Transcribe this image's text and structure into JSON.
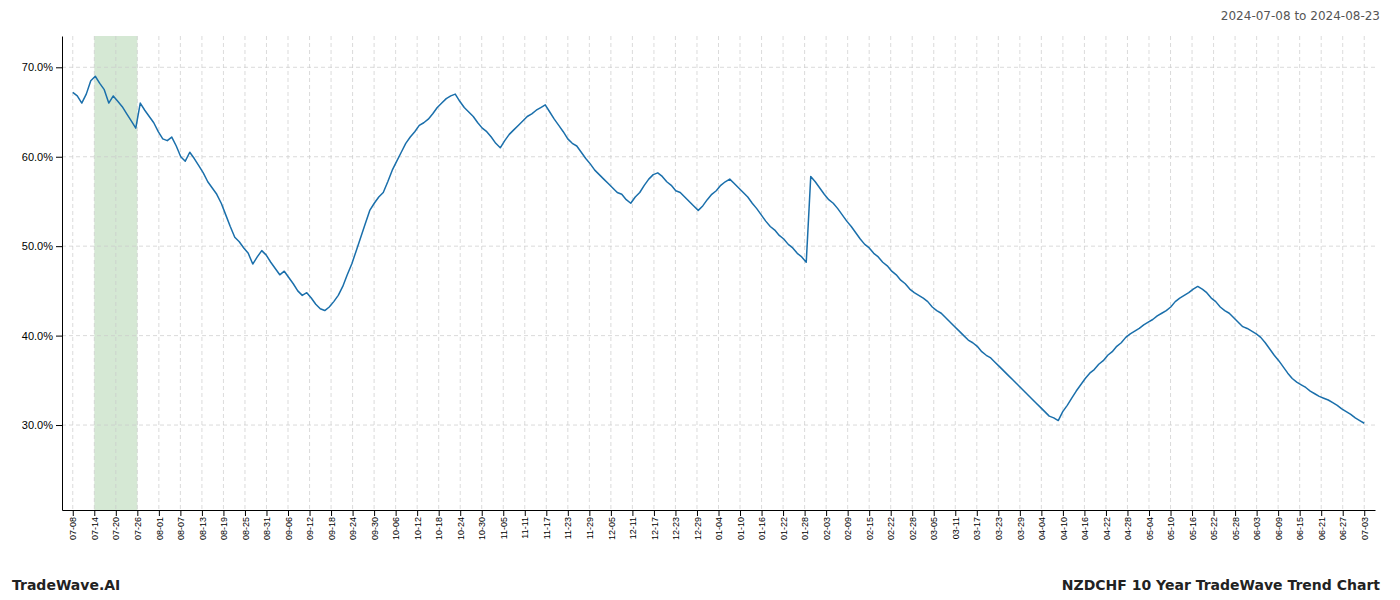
{
  "chart_data": {
    "type": "line",
    "title": "NZDCHF 10 Year TradeWave Trend Chart",
    "subtitle": "2024-07-08 to 2024-08-23",
    "annotations": [
      "TradeWave.AI"
    ],
    "color": "#1a6fab",
    "grid": true,
    "xlim": [
      -0.5,
      60.5
    ],
    "xticks": [
      {
        "value": 0,
        "label": "07-08"
      },
      {
        "value": 1,
        "label": "07-14"
      },
      {
        "value": 2,
        "label": "07-20"
      },
      {
        "value": 3,
        "label": "07-26"
      },
      {
        "value": 4,
        "label": "08-01"
      },
      {
        "value": 5,
        "label": "08-07"
      },
      {
        "value": 6,
        "label": "08-13"
      },
      {
        "value": 7,
        "label": "08-19"
      },
      {
        "value": 8,
        "label": "08-25"
      },
      {
        "value": 9,
        "label": "08-31"
      },
      {
        "value": 10,
        "label": "09-06"
      },
      {
        "value": 11,
        "label": "09-12"
      },
      {
        "value": 12,
        "label": "09-18"
      },
      {
        "value": 13,
        "label": "09-24"
      },
      {
        "value": 14,
        "label": "09-30"
      },
      {
        "value": 15,
        "label": "10-06"
      },
      {
        "value": 16,
        "label": "10-12"
      },
      {
        "value": 17,
        "label": "10-18"
      },
      {
        "value": 18,
        "label": "10-24"
      },
      {
        "value": 19,
        "label": "10-30"
      },
      {
        "value": 20,
        "label": "11-05"
      },
      {
        "value": 21,
        "label": "11-11"
      },
      {
        "value": 22,
        "label": "11-17"
      },
      {
        "value": 23,
        "label": "11-23"
      },
      {
        "value": 24,
        "label": "11-29"
      },
      {
        "value": 25,
        "label": "12-05"
      },
      {
        "value": 26,
        "label": "12-11"
      },
      {
        "value": 27,
        "label": "12-17"
      },
      {
        "value": 28,
        "label": "12-23"
      },
      {
        "value": 29,
        "label": "12-29"
      },
      {
        "value": 30,
        "label": "01-04"
      },
      {
        "value": 31,
        "label": "01-10"
      },
      {
        "value": 32,
        "label": "01-16"
      },
      {
        "value": 33,
        "label": "01-22"
      },
      {
        "value": 34,
        "label": "01-28"
      },
      {
        "value": 35,
        "label": "02-03"
      },
      {
        "value": 36,
        "label": "02-09"
      },
      {
        "value": 37,
        "label": "02-15"
      },
      {
        "value": 38,
        "label": "02-22"
      },
      {
        "value": 39,
        "label": "02-28"
      },
      {
        "value": 40,
        "label": "03-05"
      },
      {
        "value": 41,
        "label": "03-11"
      },
      {
        "value": 42,
        "label": "03-17"
      },
      {
        "value": 43,
        "label": "03-23"
      },
      {
        "value": 44,
        "label": "03-29"
      },
      {
        "value": 45,
        "label": "04-04"
      },
      {
        "value": 46,
        "label": "04-10"
      },
      {
        "value": 47,
        "label": "04-16"
      },
      {
        "value": 48,
        "label": "04-22"
      },
      {
        "value": 49,
        "label": "04-28"
      },
      {
        "value": 50,
        "label": "05-04"
      },
      {
        "value": 51,
        "label": "05-10"
      },
      {
        "value": 52,
        "label": "05-16"
      },
      {
        "value": 53,
        "label": "05-22"
      },
      {
        "value": 54,
        "label": "05-28"
      },
      {
        "value": 55,
        "label": "06-03"
      },
      {
        "value": 56,
        "label": "06-09"
      },
      {
        "value": 57,
        "label": "06-15"
      },
      {
        "value": 58,
        "label": "06-21"
      },
      {
        "value": 59,
        "label": "06-27"
      },
      {
        "value": 60,
        "label": "07-03"
      }
    ],
    "ylim": [
      0.205,
      0.735
    ],
    "yticks": [
      {
        "value": 0.3,
        "label": "30.0%"
      },
      {
        "value": 0.4,
        "label": "40.0%"
      },
      {
        "value": 0.5,
        "label": "50.0%"
      },
      {
        "value": 0.6,
        "label": "60.0%"
      },
      {
        "value": 0.7,
        "label": "70.0%"
      }
    ],
    "spans": [
      {
        "start": 1,
        "end": 3,
        "color": "#d5e8d4"
      }
    ],
    "values": [
      0.672,
      0.668,
      0.66,
      0.67,
      0.685,
      0.69,
      0.682,
      0.675,
      0.66,
      0.668,
      0.662,
      0.656,
      0.648,
      0.64,
      0.632,
      0.66,
      0.652,
      0.645,
      0.638,
      0.628,
      0.62,
      0.618,
      0.622,
      0.612,
      0.6,
      0.595,
      0.605,
      0.598,
      0.59,
      0.582,
      0.572,
      0.565,
      0.558,
      0.548,
      0.535,
      0.522,
      0.51,
      0.505,
      0.498,
      0.492,
      0.48,
      0.488,
      0.495,
      0.49,
      0.482,
      0.475,
      0.468,
      0.472,
      0.465,
      0.458,
      0.45,
      0.445,
      0.448,
      0.442,
      0.435,
      0.43,
      0.428,
      0.432,
      0.438,
      0.445,
      0.455,
      0.468,
      0.48,
      0.495,
      0.51,
      0.525,
      0.54,
      0.548,
      0.555,
      0.56,
      0.572,
      0.585,
      0.595,
      0.605,
      0.615,
      0.622,
      0.628,
      0.635,
      0.638,
      0.642,
      0.648,
      0.655,
      0.66,
      0.665,
      0.668,
      0.67,
      0.662,
      0.655,
      0.65,
      0.645,
      0.638,
      0.632,
      0.628,
      0.622,
      0.615,
      0.61,
      0.618,
      0.625,
      0.63,
      0.635,
      0.64,
      0.645,
      0.648,
      0.652,
      0.655,
      0.658,
      0.65,
      0.642,
      0.635,
      0.628,
      0.62,
      0.615,
      0.612,
      0.605,
      0.598,
      0.592,
      0.585,
      0.58,
      0.575,
      0.57,
      0.565,
      0.56,
      0.558,
      0.552,
      0.548,
      0.555,
      0.56,
      0.568,
      0.575,
      0.58,
      0.582,
      0.578,
      0.572,
      0.568,
      0.562,
      0.56,
      0.555,
      0.55,
      0.545,
      0.54,
      0.545,
      0.552,
      0.558,
      0.562,
      0.568,
      0.572,
      0.575,
      0.57,
      0.565,
      0.56,
      0.555,
      0.548,
      0.542,
      0.535,
      0.528,
      0.522,
      0.518,
      0.512,
      0.508,
      0.502,
      0.498,
      0.492,
      0.488,
      0.482,
      0.578,
      0.572,
      0.565,
      0.558,
      0.552,
      0.548,
      0.542,
      0.535,
      0.528,
      0.522,
      0.515,
      0.508,
      0.502,
      0.498,
      0.492,
      0.488,
      0.482,
      0.478,
      0.472,
      0.468,
      0.462,
      0.458,
      0.452,
      0.448,
      0.445,
      0.442,
      0.438,
      0.432,
      0.428,
      0.425,
      0.42,
      0.415,
      0.41,
      0.405,
      0.4,
      0.395,
      0.392,
      0.388,
      0.382,
      0.378,
      0.375,
      0.37,
      0.365,
      0.36,
      0.355,
      0.35,
      0.345,
      0.34,
      0.335,
      0.33,
      0.325,
      0.32,
      0.315,
      0.31,
      0.308,
      0.305,
      0.315,
      0.322,
      0.33,
      0.338,
      0.345,
      0.352,
      0.358,
      0.362,
      0.368,
      0.372,
      0.378,
      0.382,
      0.388,
      0.392,
      0.398,
      0.402,
      0.405,
      0.408,
      0.412,
      0.415,
      0.418,
      0.422,
      0.425,
      0.428,
      0.432,
      0.438,
      0.442,
      0.445,
      0.448,
      0.452,
      0.455,
      0.452,
      0.448,
      0.442,
      0.438,
      0.432,
      0.428,
      0.425,
      0.42,
      0.415,
      0.41,
      0.408,
      0.405,
      0.402,
      0.398,
      0.392,
      0.385,
      0.378,
      0.372,
      0.365,
      0.358,
      0.352,
      0.348,
      0.345,
      0.342,
      0.338,
      0.335,
      0.332,
      0.33,
      0.328,
      0.325,
      0.322,
      0.318,
      0.315,
      0.312,
      0.308,
      0.305,
      0.302
    ]
  }
}
